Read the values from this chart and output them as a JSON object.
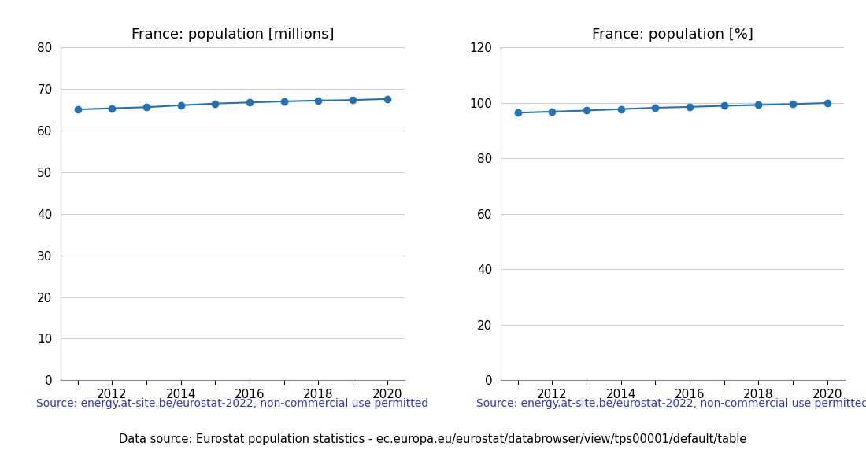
{
  "years": [
    2011,
    2012,
    2013,
    2014,
    2015,
    2016,
    2017,
    2018,
    2019,
    2020
  ],
  "population_millions": [
    65.05,
    65.34,
    65.6,
    66.06,
    66.46,
    66.73,
    66.99,
    67.19,
    67.32,
    67.57
  ],
  "population_pct": [
    96.4,
    96.8,
    97.2,
    97.7,
    98.2,
    98.5,
    98.9,
    99.2,
    99.5,
    99.9
  ],
  "title_millions": "France: population [millions]",
  "title_pct": "France: population [%]",
  "ylim_millions": [
    0,
    80
  ],
  "ylim_pct": [
    0,
    120
  ],
  "yticks_millions": [
    0,
    10,
    20,
    30,
    40,
    50,
    60,
    70,
    80
  ],
  "yticks_pct": [
    0,
    20,
    40,
    60,
    80,
    100,
    120
  ],
  "xticks_all": [
    2011,
    2012,
    2013,
    2014,
    2015,
    2016,
    2017,
    2018,
    2019,
    2020
  ],
  "xtick_labels": [
    "",
    "2012",
    "",
    "2014",
    "",
    "2016",
    "",
    "2018",
    "",
    "2020"
  ],
  "line_color": "#2171b5",
  "marker": "o",
  "markersize": 6,
  "source_text": "Source: energy.at-site.be/eurostat-2022, non-commercial use permitted",
  "source_color": "#3333cc",
  "footer_text": "Data source: Eurostat population statistics - ec.europa.eu/eurostat/databrowser/view/tps00001/default/table",
  "footer_color": "#000000",
  "bg_color": "#ffffff",
  "grid_color": "#cccccc",
  "title_fontsize": 13,
  "tick_fontsize": 11,
  "source_fontsize": 10,
  "footer_fontsize": 10.5
}
